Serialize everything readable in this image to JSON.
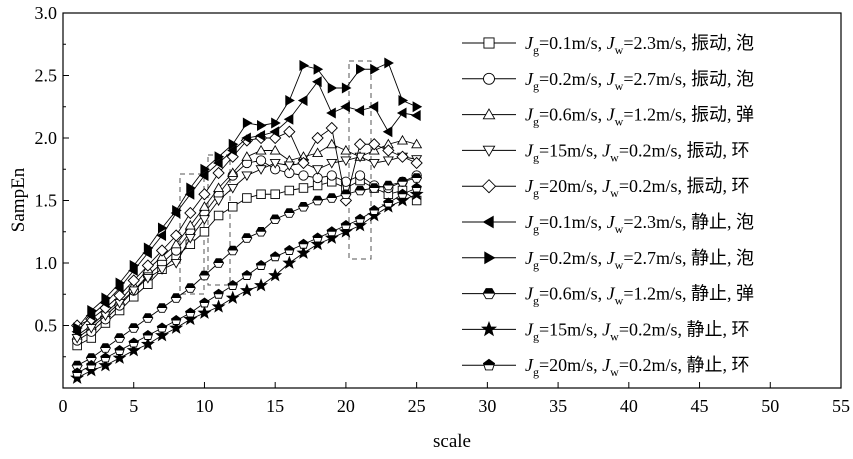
{
  "chart_data": {
    "type": "line",
    "xlabel": "scale",
    "ylabel": "SampEn",
    "xlim": [
      0,
      55
    ],
    "ylim": [
      0.0,
      3.0
    ],
    "xticks": [
      "0",
      "5",
      "10",
      "15",
      "20",
      "25",
      "30",
      "35",
      "40",
      "45",
      "50",
      "55"
    ],
    "yticks": [
      "0.5",
      "1.0",
      "1.5",
      "2.0",
      "2.5",
      "3.0"
    ],
    "grid": false,
    "legend_position": "top-right",
    "x": [
      1,
      2,
      3,
      4,
      5,
      6,
      7,
      8,
      9,
      10,
      11,
      12,
      13,
      14,
      15,
      16,
      17,
      18,
      19,
      20,
      21,
      22,
      23,
      24,
      25
    ],
    "series": [
      {
        "marker": "square",
        "fill": "open",
        "label": {
          "g": "0.1m/s",
          "w": "2.3m/s",
          "state": "振动",
          "flow": "泡"
        },
        "values": [
          0.34,
          0.4,
          0.52,
          0.62,
          0.73,
          0.83,
          0.95,
          1.05,
          1.15,
          1.25,
          1.38,
          1.45,
          1.52,
          1.55,
          1.55,
          1.58,
          1.6,
          1.62,
          1.65,
          1.6,
          1.66,
          1.6,
          1.55,
          1.58,
          1.5
        ]
      },
      {
        "marker": "circle",
        "fill": "open",
        "label": {
          "g": "0.2m/s",
          "w": "2.7m/s",
          "state": "振动",
          "flow": "泡"
        },
        "values": [
          0.38,
          0.45,
          0.55,
          0.66,
          0.78,
          0.9,
          1.0,
          1.1,
          1.25,
          1.4,
          1.55,
          1.7,
          1.8,
          1.82,
          1.75,
          1.72,
          1.7,
          1.68,
          1.7,
          1.65,
          1.7,
          1.62,
          1.6,
          1.65,
          1.7
        ]
      },
      {
        "marker": "triangle-up",
        "fill": "open",
        "label": {
          "g": "0.6m/s",
          "w": "1.2m/s",
          "state": "振动",
          "flow": "弹"
        },
        "values": [
          0.42,
          0.5,
          0.6,
          0.7,
          0.82,
          0.95,
          1.05,
          1.15,
          1.3,
          1.45,
          1.6,
          1.72,
          1.85,
          1.9,
          1.9,
          1.82,
          1.85,
          1.88,
          1.95,
          1.9,
          1.85,
          1.9,
          1.95,
          1.98,
          1.95
        ]
      },
      {
        "marker": "triangle-down",
        "fill": "open",
        "label": {
          "g": "15m/s",
          "w": "0.2m/s",
          "state": "振动",
          "flow": "环"
        },
        "values": [
          0.4,
          0.48,
          0.58,
          0.68,
          0.78,
          0.88,
          0.95,
          1.0,
          1.2,
          1.35,
          1.5,
          1.6,
          1.7,
          1.75,
          1.8,
          1.78,
          1.8,
          1.75,
          1.8,
          1.82,
          1.85,
          1.8,
          1.82,
          1.85,
          1.83
        ]
      },
      {
        "marker": "diamond",
        "fill": "open",
        "label": {
          "g": "20m/s",
          "w": "0.2m/s",
          "state": "振动",
          "flow": "环"
        },
        "values": [
          0.5,
          0.55,
          0.64,
          0.74,
          0.86,
          0.98,
          1.1,
          1.22,
          1.4,
          1.55,
          1.72,
          1.85,
          1.98,
          2.0,
          2.0,
          2.05,
          1.8,
          2.0,
          2.08,
          1.5,
          1.95,
          1.95,
          1.9,
          1.85,
          1.8
        ]
      },
      {
        "marker": "triangle-left",
        "fill": "solid",
        "label": {
          "g": "0.1m/s",
          "w": "2.3m/s",
          "state": "静止",
          "flow": "泡"
        },
        "values": [
          0.45,
          0.58,
          0.68,
          0.8,
          0.94,
          1.08,
          1.22,
          1.4,
          1.55,
          1.7,
          1.8,
          1.9,
          2.0,
          2.02,
          2.05,
          2.15,
          2.3,
          2.45,
          2.2,
          2.25,
          2.22,
          2.25,
          2.05,
          2.2,
          2.18
        ]
      },
      {
        "marker": "triangle-right",
        "fill": "solid",
        "label": {
          "g": "0.2m/s",
          "w": "2.7m/s",
          "state": "静止",
          "flow": "泡"
        },
        "values": [
          0.48,
          0.62,
          0.72,
          0.84,
          0.98,
          1.12,
          1.28,
          1.42,
          1.6,
          1.75,
          1.85,
          1.95,
          2.12,
          2.1,
          2.12,
          2.3,
          2.58,
          2.55,
          2.4,
          2.4,
          2.55,
          2.55,
          2.6,
          2.3,
          2.25
        ]
      },
      {
        "marker": "hexagon",
        "fill": "half",
        "label": {
          "g": "0.6m/s",
          "w": "1.2m/s",
          "state": "静止",
          "flow": "弹"
        },
        "values": [
          0.18,
          0.24,
          0.32,
          0.4,
          0.48,
          0.56,
          0.64,
          0.72,
          0.8,
          0.9,
          1.0,
          1.1,
          1.2,
          1.25,
          1.35,
          1.4,
          1.45,
          1.5,
          1.52,
          1.55,
          1.58,
          1.6,
          1.62,
          1.65,
          1.68
        ]
      },
      {
        "marker": "star",
        "fill": "solid",
        "label": {
          "g": "15m/s",
          "w": "0.2m/s",
          "state": "静止",
          "flow": "环"
        },
        "values": [
          0.08,
          0.14,
          0.18,
          0.24,
          0.3,
          0.35,
          0.42,
          0.48,
          0.55,
          0.6,
          0.65,
          0.72,
          0.78,
          0.82,
          0.9,
          1.0,
          1.08,
          1.15,
          1.2,
          1.25,
          1.3,
          1.38,
          1.45,
          1.5,
          1.55
        ]
      },
      {
        "marker": "pentagon",
        "fill": "half",
        "label": {
          "g": "20m/s",
          "w": "0.2m/s",
          "state": "静止",
          "flow": "环"
        },
        "values": [
          0.12,
          0.18,
          0.24,
          0.3,
          0.36,
          0.42,
          0.48,
          0.54,
          0.6,
          0.68,
          0.75,
          0.82,
          0.9,
          0.98,
          1.05,
          1.1,
          1.15,
          1.2,
          1.25,
          1.3,
          1.35,
          1.42,
          1.48,
          1.55,
          1.6
        ]
      }
    ]
  }
}
